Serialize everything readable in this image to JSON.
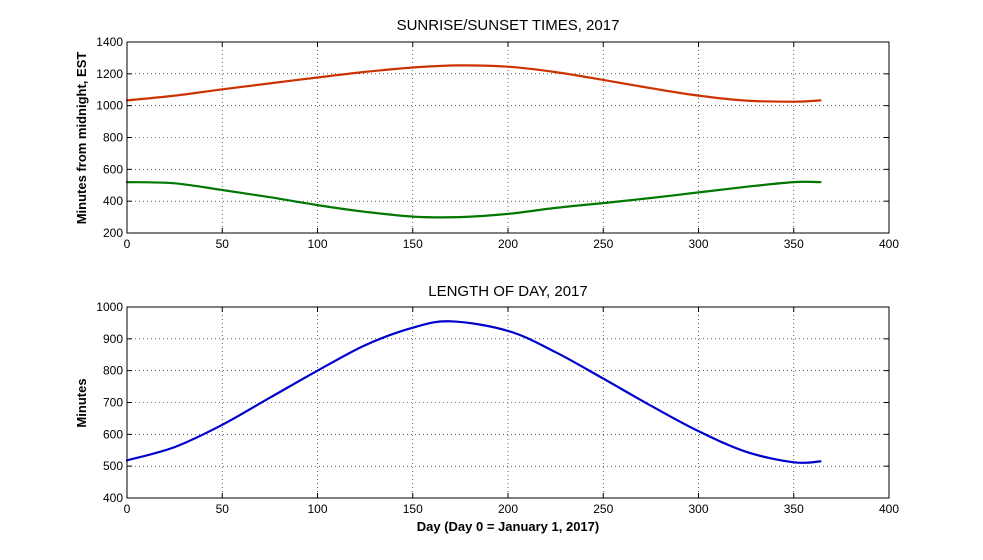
{
  "chart_data": [
    {
      "type": "line",
      "title": "SUNRISE/SUNSET TIMES, 2017",
      "xlabel": "",
      "ylabel": "Minutes from midnight, EST",
      "xlim": [
        0,
        400
      ],
      "ylim": [
        200,
        1400
      ],
      "xticks": [
        0,
        50,
        100,
        150,
        200,
        250,
        300,
        350,
        400
      ],
      "yticks": [
        200,
        400,
        600,
        800,
        1000,
        1200,
        1400
      ],
      "grid": true,
      "legend": "none",
      "x": [
        0,
        25,
        50,
        75,
        100,
        125,
        150,
        175,
        200,
        225,
        250,
        275,
        300,
        325,
        350,
        364
      ],
      "series": [
        {
          "color": "#cc3300",
          "values": [
            1033,
            1063,
            1103,
            1140,
            1177,
            1212,
            1240,
            1253,
            1245,
            1211,
            1162,
            1110,
            1063,
            1032,
            1025,
            1033
          ]
        },
        {
          "color": "#007700",
          "values": [
            520,
            512,
            470,
            425,
            375,
            333,
            303,
            300,
            320,
            358,
            388,
            420,
            455,
            490,
            520,
            520
          ]
        }
      ]
    },
    {
      "type": "line",
      "title": "LENGTH OF DAY, 2017",
      "xlabel": "Day (Day 0 = January 1, 2017)",
      "ylabel": "Minutes",
      "xlim": [
        0,
        400
      ],
      "ylim": [
        400,
        1000
      ],
      "xticks": [
        0,
        50,
        100,
        150,
        200,
        250,
        300,
        350,
        400
      ],
      "yticks": [
        400,
        500,
        600,
        700,
        800,
        900,
        1000
      ],
      "grid": true,
      "legend": "none",
      "x": [
        0,
        25,
        50,
        75,
        100,
        125,
        150,
        170,
        200,
        225,
        250,
        275,
        300,
        325,
        350,
        364
      ],
      "series": [
        {
          "color": "#0000cc",
          "values": [
            518,
            560,
            630,
            715,
            800,
            880,
            935,
            955,
            925,
            858,
            775,
            690,
            610,
            545,
            512,
            515
          ]
        }
      ]
    }
  ]
}
